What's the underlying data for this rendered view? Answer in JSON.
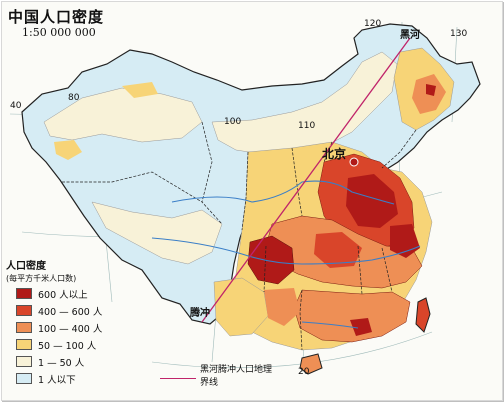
{
  "map": {
    "title": "中国人口密度",
    "scale": "1:50 000 000",
    "colors": {
      "d600": "#b01a18",
      "d400": "#d9452a",
      "d100": "#ee8f55",
      "d50": "#f7d477",
      "d1": "#f8f2d8",
      "d0": "#d6ecf4",
      "boundary": "#222222",
      "river": "#3a7ec7",
      "hu_line": "#c0246a"
    }
  },
  "places": {
    "beijing": "北京",
    "heihe": "黑河",
    "tengchong": "腾冲"
  },
  "graticule": {
    "lon_120": "120",
    "lon_130": "130",
    "lon_110": "110",
    "lon_100": "100",
    "lon_80": "80",
    "lat_40": "40",
    "lat_20": "20"
  },
  "legend": {
    "title": "人口密度",
    "unit": "(每平方千米人口数)",
    "items": [
      {
        "label": "600 人以上",
        "color": "#b01a18"
      },
      {
        "label": "400 — 600 人",
        "color": "#d9452a"
      },
      {
        "label": "100 — 400 人",
        "color": "#ee8f55"
      },
      {
        "label": "50 — 100 人",
        "color": "#f7d477"
      },
      {
        "label": "1 — 50 人",
        "color": "#f8f2d8"
      },
      {
        "label": "1 人以下",
        "color": "#d6ecf4"
      }
    ],
    "line_label": "黑河腾冲人口地理界线"
  }
}
